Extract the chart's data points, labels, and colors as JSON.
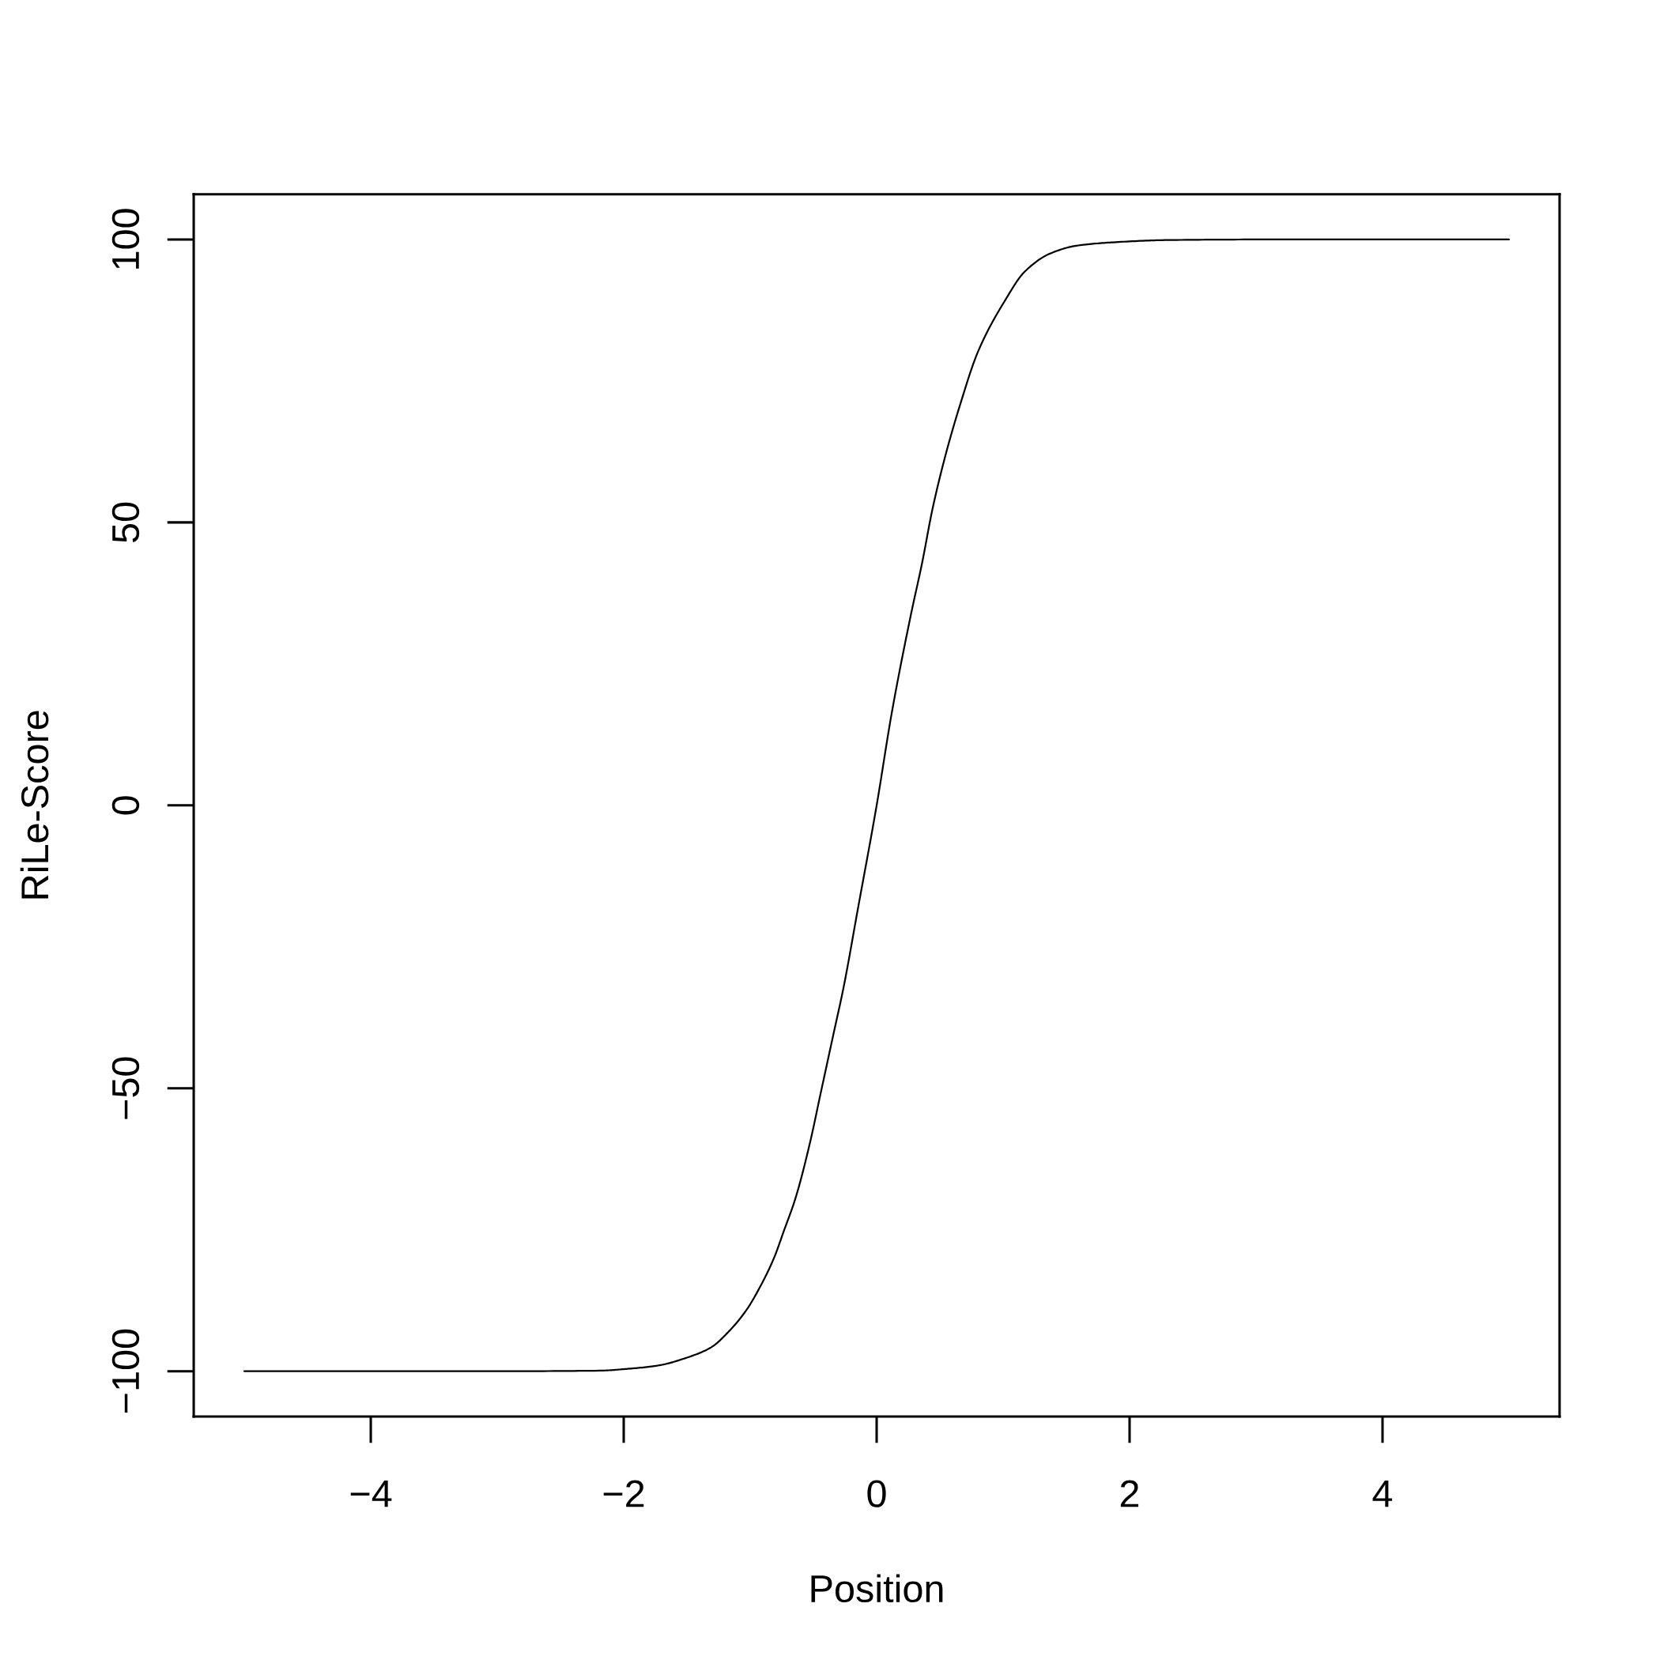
{
  "chart_data": {
    "type": "line",
    "xlabel": "Position",
    "ylabel": "RiLe-Score",
    "series": [
      {
        "color": "#000000",
        "x": [
          -5,
          -3,
          -2.19,
          -1.98,
          -1.73,
          -1.5,
          -1.31,
          -1.17,
          -1.03,
          -0.91,
          -0.81,
          -0.735,
          -0.64,
          -0.53,
          -0.44,
          -0.35,
          -0.26,
          -0.15,
          0,
          0.12,
          0.27,
          0.36,
          0.44,
          0.54,
          0.66,
          0.8,
          1.02,
          1.17,
          1.37,
          1.58,
          1.87,
          2.3,
          3,
          5
        ],
        "values": [
          -100,
          -100,
          -99.9,
          -99.6,
          -99,
          -97.6,
          -95.8,
          -93,
          -89.2,
          -84.6,
          -79.9,
          -75.3,
          -69.3,
          -59.9,
          -50.6,
          -41.3,
          -32,
          -18.5,
          0,
          16.4,
          33.6,
          42.9,
          52.2,
          61.5,
          70.8,
          80.1,
          89.4,
          94.3,
          97.5,
          98.9,
          99.5,
          99.9,
          100,
          100
        ]
      }
    ],
    "xlim": [
      -5.4,
      5.4
    ],
    "ylim": [
      -108,
      108
    ],
    "xticks": [
      {
        "value": -4,
        "label": "−4"
      },
      {
        "value": -2,
        "label": "−2"
      },
      0,
      2,
      4
    ],
    "yticks": [
      {
        "value": -100,
        "label": "−100"
      },
      {
        "value": -50,
        "label": "−50"
      },
      0,
      50,
      100
    ]
  }
}
